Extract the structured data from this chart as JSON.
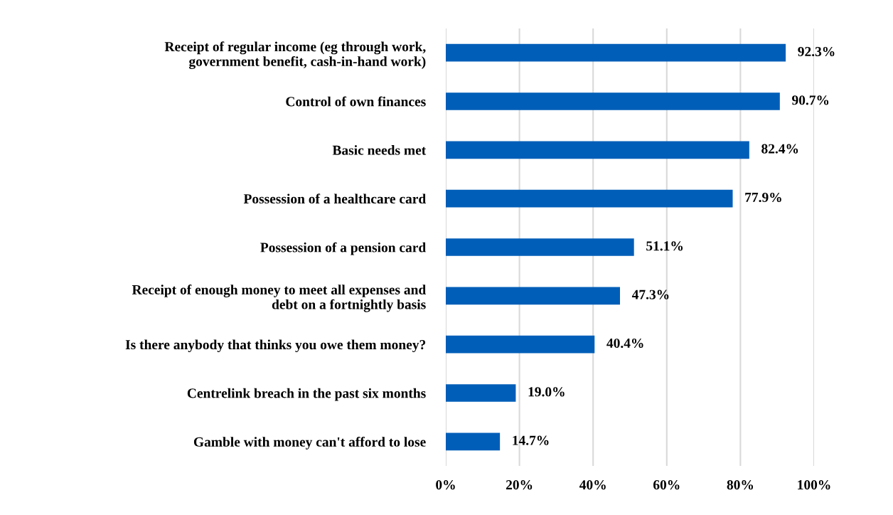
{
  "chart_data": {
    "type": "bar",
    "orientation": "horizontal",
    "categories": [
      "Receipt of regular income (eg through work,\ngovernment benefit, cash-in-hand work)",
      "Control of own finances",
      "Basic needs met",
      "Possession of a healthcare card",
      "Possession of a pension card",
      "Receipt of enough money to meet all expenses and\ndebt on a fortnightly basis",
      "Is there anybody that thinks you owe them money?",
      "Centrelink breach in the past six months",
      "Gamble with money can't afford to lose"
    ],
    "values": [
      92.3,
      90.7,
      82.4,
      77.9,
      51.1,
      47.3,
      40.4,
      19.0,
      14.7
    ],
    "value_labels": [
      "92.3%",
      "90.7%",
      "82.4%",
      "77.9%",
      "51.1%",
      "47.3%",
      "40.4%",
      "19.0%",
      "14.7%"
    ],
    "color": "#005eb8",
    "xlim": [
      0,
      100
    ],
    "xticks": [
      {
        "value": 0,
        "label": "0%"
      },
      {
        "value": 20,
        "label": "20%"
      },
      {
        "value": 40,
        "label": "40%"
      },
      {
        "value": 60,
        "label": "60%"
      },
      {
        "value": 80,
        "label": "80%"
      },
      {
        "value": 100,
        "label": "100%"
      }
    ],
    "grid": "x",
    "legend": false
  }
}
